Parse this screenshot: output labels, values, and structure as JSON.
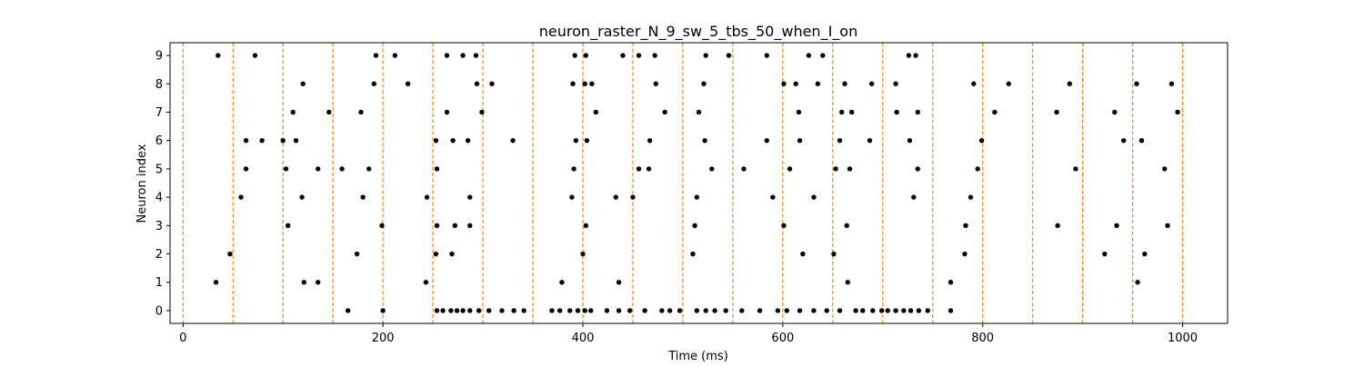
{
  "figure": {
    "title": "neuron_raster_N_9_sw_5_tbs_50_when_I_on"
  },
  "chart_data": {
    "type": "scatter",
    "title": "neuron_raster_N_9_sw_5_tbs_50_when_I_on",
    "xlabel": "Time (ms)",
    "ylabel": "Neuron index",
    "xlim": [
      -13,
      1045
    ],
    "ylim": [
      -0.45,
      9.45
    ],
    "xticks": [
      0,
      200,
      400,
      600,
      800,
      1000
    ],
    "yticks": [
      0,
      1,
      2,
      3,
      4,
      5,
      6,
      7,
      8,
      9
    ],
    "grid": false,
    "marker_color": "#000000",
    "vline_color": "#ff7f0e",
    "vlines": [
      0,
      50,
      100,
      150,
      200,
      250,
      300,
      350,
      400,
      450,
      500,
      550,
      600,
      650,
      700,
      750,
      800,
      850,
      900,
      950,
      1000
    ],
    "spikes": [
      {
        "neuron": 0,
        "times": [
          165,
          200,
          254,
          260,
          268,
          274,
          280,
          287,
          296,
          306,
          319,
          331,
          341,
          369,
          377,
          387,
          395,
          402,
          408,
          424,
          436,
          447,
          462,
          479,
          487,
          497,
          514,
          523,
          532,
          543,
          559,
          577,
          595,
          604,
          617,
          631,
          644,
          657,
          673,
          680,
          690,
          699,
          705,
          713,
          721,
          728,
          736,
          745,
          768
        ]
      },
      {
        "neuron": 1,
        "times": [
          33,
          121,
          135,
          243,
          379,
          436,
          665,
          768,
          955
        ]
      },
      {
        "neuron": 2,
        "times": [
          47,
          174,
          253,
          269,
          400,
          510,
          620,
          651,
          782,
          922,
          962
        ]
      },
      {
        "neuron": 3,
        "times": [
          105,
          199,
          254,
          272,
          287,
          403,
          512,
          601,
          664,
          783,
          875,
          934,
          985
        ]
      },
      {
        "neuron": 4,
        "times": [
          58,
          119,
          180,
          244,
          287,
          389,
          433,
          450,
          514,
          590,
          631,
          731,
          788
        ]
      },
      {
        "neuron": 5,
        "times": [
          63,
          103,
          135,
          159,
          186,
          254,
          391,
          456,
          466,
          529,
          561,
          607,
          653,
          667,
          735,
          795,
          893,
          982
        ]
      },
      {
        "neuron": 6,
        "times": [
          63,
          79,
          100,
          113,
          253,
          270,
          285,
          330,
          393,
          404,
          467,
          522,
          584,
          617,
          657,
          687,
          727,
          799,
          941,
          959
        ]
      },
      {
        "neuron": 7,
        "times": [
          110,
          146,
          178,
          264,
          299,
          413,
          482,
          516,
          616,
          659,
          669,
          714,
          735,
          812,
          874,
          932,
          995
        ]
      },
      {
        "neuron": 8,
        "times": [
          120,
          191,
          225,
          294,
          309,
          390,
          402,
          409,
          473,
          521,
          601,
          613,
          635,
          662,
          689,
          713,
          791,
          826,
          887,
          954,
          989
        ]
      },
      {
        "neuron": 9,
        "times": [
          35,
          72,
          193,
          212,
          264,
          280,
          293,
          392,
          403,
          440,
          456,
          472,
          523,
          546,
          584,
          626,
          640,
          726,
          733
        ]
      }
    ]
  }
}
